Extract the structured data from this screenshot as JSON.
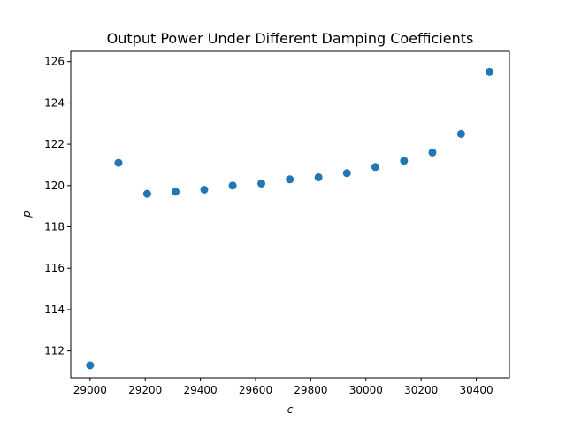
{
  "chart_data": {
    "type": "scatter",
    "title": "Output Power Under Different Damping Coefficients",
    "xlabel": "c",
    "ylabel": "p",
    "x_ticks": [
      29000,
      29200,
      29400,
      29600,
      29800,
      30000,
      30200,
      30400
    ],
    "y_ticks": [
      112,
      114,
      116,
      118,
      120,
      122,
      124,
      126
    ],
    "xlim": [
      28930,
      30520
    ],
    "ylim": [
      110.7,
      126.5
    ],
    "grid": false,
    "series": [
      {
        "color": "#1f77b4",
        "points": [
          {
            "x": 29000,
            "y": 111.3
          },
          {
            "x": 29103,
            "y": 121.1
          },
          {
            "x": 29207,
            "y": 119.6
          },
          {
            "x": 29310,
            "y": 119.7
          },
          {
            "x": 29414,
            "y": 119.8
          },
          {
            "x": 29517,
            "y": 120.0
          },
          {
            "x": 29621,
            "y": 120.1
          },
          {
            "x": 29724,
            "y": 120.3
          },
          {
            "x": 29828,
            "y": 120.4
          },
          {
            "x": 29931,
            "y": 120.6
          },
          {
            "x": 30034,
            "y": 120.9
          },
          {
            "x": 30138,
            "y": 121.2
          },
          {
            "x": 30241,
            "y": 121.6
          },
          {
            "x": 30345,
            "y": 122.5
          },
          {
            "x": 30448,
            "y": 125.5
          }
        ]
      }
    ]
  }
}
